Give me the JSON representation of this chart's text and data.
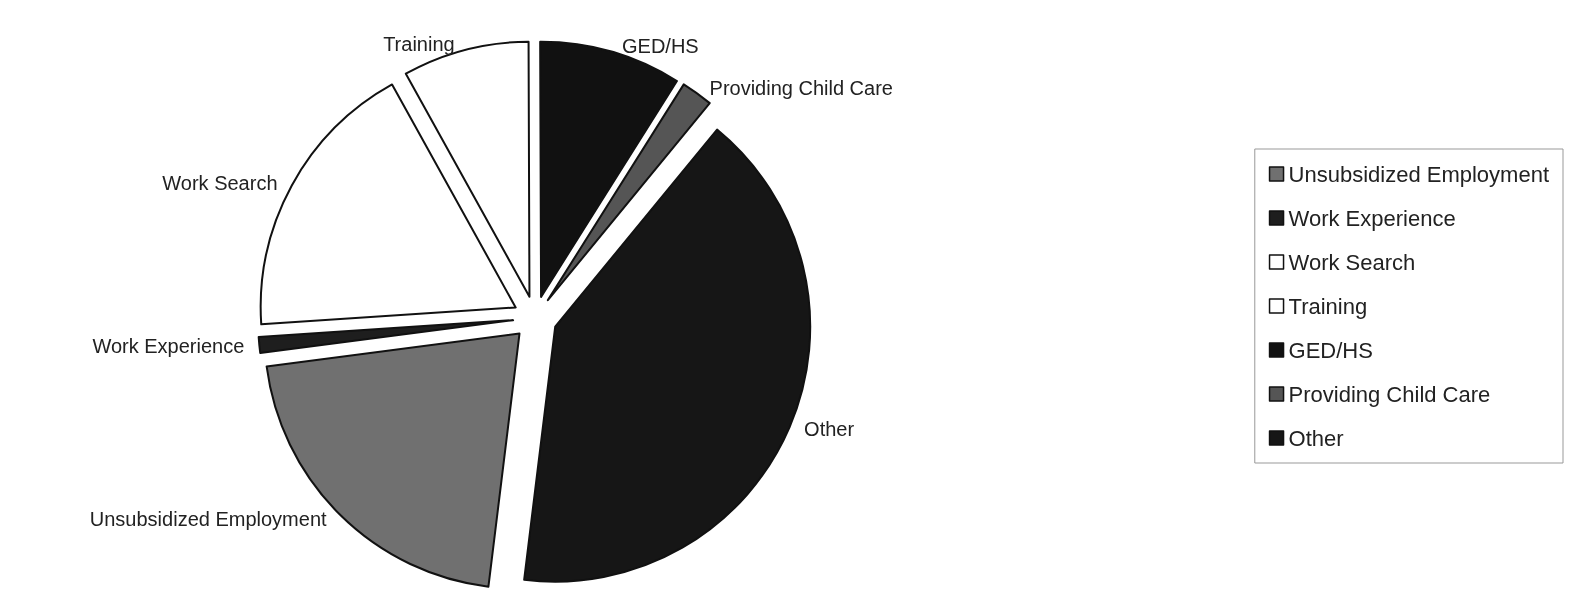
{
  "chart_data": {
    "type": "pie",
    "categories": [
      "Unsubsidized Employment",
      "Work Experience",
      "Work Search",
      "Training",
      "GED/HS",
      "Providing Child Care",
      "Other"
    ],
    "values": [
      21,
      1,
      18,
      8,
      9,
      2,
      41
    ],
    "colors": [
      "#707070",
      "#1e1e1e",
      "#ffffff",
      "#ffffff",
      "#111111",
      "#555555",
      "#161616"
    ],
    "legend": "right"
  }
}
